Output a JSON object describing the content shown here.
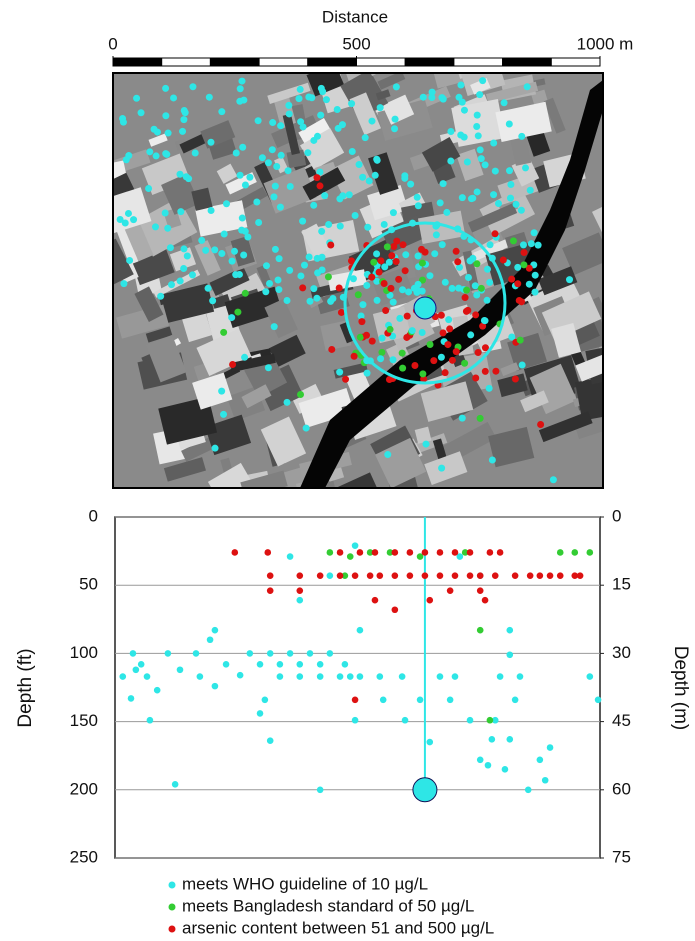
{
  "scale_bar": {
    "title": "Distance",
    "lim": [
      0,
      1000
    ],
    "ticks": [
      0,
      500,
      {
        "value": 1000,
        "label": "1000 m"
      }
    ]
  },
  "chart_data": {
    "type": "scatter",
    "ylabel": "Depth (ft)",
    "y2label": "Depth (m)",
    "xlim": [
      0,
      1000
    ],
    "ylim": [
      0,
      250
    ],
    "yticks": [
      0,
      50,
      100,
      150,
      200,
      250
    ],
    "y2lim": [
      0,
      75
    ],
    "y2ticks": [
      0,
      15,
      30,
      45,
      60,
      75
    ],
    "grid": true,
    "well": {
      "x": 639,
      "depth": 200,
      "color": "#2ee6e6"
    },
    "series": [
      {
        "name": "meets WHO guideline of 10 µg/L",
        "color": "#2ee6e6",
        "x": [
          37,
          54,
          43,
          66,
          16,
          33,
          87,
          72,
          109,
          134,
          167,
          196,
          206,
          175,
          206,
          229,
          258,
          278,
          299,
          320,
          340,
          361,
          381,
          402,
          423,
          443,
          474,
          485,
          340,
          381,
          423,
          464,
          505,
          546,
          309,
          299,
          361,
          381,
          443,
          495,
          505,
          553,
          592,
          598,
          629,
          670,
          701,
          649,
          753,
          769,
          777,
          784,
          804,
          814,
          825,
          794,
          835,
          876,
          887,
          711,
          753,
          495,
          814,
          814,
          691,
          732,
          852,
          979,
          423,
          897,
          996,
          124,
          320
        ],
        "values": [
          100,
          108,
          112,
          117,
          117,
          133,
          127,
          149,
          100,
          112,
          100,
          90,
          83,
          117,
          124,
          108,
          116,
          100,
          108,
          100,
          108,
          100,
          108,
          100,
          108,
          100,
          108,
          117,
          117,
          117,
          117,
          117,
          117,
          117,
          134,
          144,
          29,
          61,
          43,
          149,
          83,
          134,
          117,
          149,
          134,
          117,
          117,
          165,
          178,
          182,
          163,
          149,
          185,
          163,
          134,
          117,
          117,
          178,
          193,
          29,
          43,
          21,
          83,
          101,
          134,
          149,
          200,
          117,
          200,
          169,
          134,
          196,
          164
        ]
      },
      {
        "name": "meets Bangladesh standard of 50 µg/L",
        "color": "#33cc33",
        "x": [
          443,
          474,
          485,
          526,
          567,
          629,
          722,
          753,
          773,
          918,
          948,
          979
        ],
        "values": [
          26,
          43,
          29,
          26,
          26,
          29,
          26,
          83,
          149,
          26,
          26,
          26
        ]
      },
      {
        "name": "arsenic content between 51 and 500 µg/L",
        "color": "#dd1111",
        "x": [
          247,
          315,
          464,
          505,
          536,
          577,
          608,
          639,
          670,
          701,
          732,
          773,
          794,
          320,
          381,
          423,
          464,
          495,
          526,
          546,
          577,
          608,
          639,
          670,
          701,
          732,
          753,
          784,
          825,
          856,
          876,
          897,
          918,
          948,
          959,
          320,
          381,
          536,
          577,
          649,
          691,
          753,
          763,
          495
        ],
        "values": [
          26,
          26,
          26,
          26,
          26,
          26,
          26,
          26,
          26,
          26,
          26,
          26,
          26,
          43,
          43,
          43,
          43,
          43,
          43,
          43,
          43,
          43,
          43,
          43,
          43,
          43,
          43,
          43,
          43,
          43,
          43,
          43,
          43,
          43,
          43,
          54,
          54,
          61,
          68,
          61,
          54,
          54,
          61,
          134
        ]
      }
    ]
  }
}
